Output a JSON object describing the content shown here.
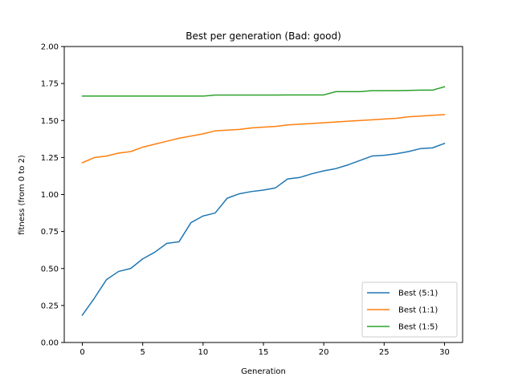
{
  "chart_data": {
    "type": "line",
    "title": "Best per generation (Bad: good)",
    "xlabel": "Generation",
    "ylabel": "fitness (from 0 to 2)",
    "xlim": [
      -1.5,
      31.5
    ],
    "ylim": [
      0,
      2
    ],
    "x_ticks": [
      0,
      5,
      10,
      15,
      20,
      25,
      30
    ],
    "y_ticks": [
      0,
      0.25,
      0.5,
      0.75,
      1.0,
      1.25,
      1.5,
      1.75,
      2.0
    ],
    "x_tick_labels": [
      "0",
      "5",
      "10",
      "15",
      "20",
      "25",
      "30"
    ],
    "y_tick_labels": [
      "0.00",
      "0.25",
      "0.50",
      "0.75",
      "1.00",
      "1.25",
      "1.50",
      "1.75",
      "2.00"
    ],
    "grid": false,
    "legend_position": "lower-right",
    "x": [
      0,
      1,
      2,
      3,
      4,
      5,
      6,
      7,
      8,
      9,
      10,
      11,
      12,
      13,
      14,
      15,
      16,
      17,
      18,
      19,
      20,
      21,
      22,
      23,
      24,
      25,
      26,
      27,
      28,
      29,
      30
    ],
    "series": [
      {
        "name": "Best (5:1)",
        "color": "#1f77b4",
        "values": [
          0.185,
          0.3,
          0.425,
          0.48,
          0.5,
          0.565,
          0.61,
          0.67,
          0.68,
          0.81,
          0.855,
          0.875,
          0.975,
          1.005,
          1.02,
          1.03,
          1.045,
          1.105,
          1.115,
          1.14,
          1.16,
          1.175,
          1.2,
          1.23,
          1.26,
          1.265,
          1.275,
          1.29,
          1.31,
          1.315,
          1.345
        ]
      },
      {
        "name": "Best (1:1)",
        "color": "#ff7f0e",
        "values": [
          1.215,
          1.25,
          1.26,
          1.28,
          1.29,
          1.32,
          1.34,
          1.36,
          1.38,
          1.395,
          1.41,
          1.43,
          1.435,
          1.44,
          1.45,
          1.455,
          1.46,
          1.47,
          1.475,
          1.48,
          1.485,
          1.49,
          1.495,
          1.5,
          1.505,
          1.51,
          1.515,
          1.525,
          1.53,
          1.535,
          1.54
        ]
      },
      {
        "name": "Best (1:5)",
        "color": "#2ca02c",
        "values": [
          1.665,
          1.665,
          1.665,
          1.665,
          1.665,
          1.665,
          1.665,
          1.665,
          1.665,
          1.665,
          1.665,
          1.672,
          1.672,
          1.672,
          1.672,
          1.672,
          1.672,
          1.673,
          1.673,
          1.673,
          1.673,
          1.695,
          1.695,
          1.695,
          1.702,
          1.702,
          1.702,
          1.703,
          1.705,
          1.705,
          1.728
        ]
      }
    ]
  }
}
